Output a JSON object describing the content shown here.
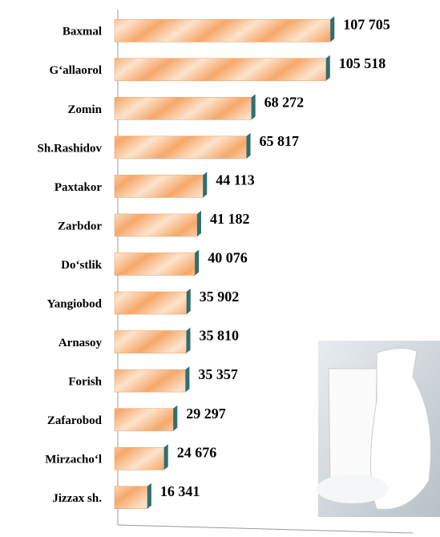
{
  "chart_data": {
    "type": "bar",
    "orientation": "horizontal",
    "categories": [
      "Baxmal",
      "G‘allaorol",
      "Zomin",
      "Sh.Rashidov",
      "Paxtakor",
      "Zarbdor",
      "Do‘stlik",
      "Yangiobod",
      "Arnasoy",
      "Forish",
      "Zafarobod",
      "Mirzacho‘l",
      "Jizzax sh."
    ],
    "values": [
      107705,
      105518,
      68272,
      65817,
      44113,
      41182,
      40076,
      35902,
      35810,
      35357,
      29297,
      24676,
      16341
    ],
    "value_labels": [
      "107 705",
      "105 518",
      "68 272",
      "65 817",
      "44 113",
      "41 182",
      "40 076",
      "35 902",
      "35 810",
      "35 357",
      "29 297",
      "24 676",
      "16 341"
    ],
    "color": "#f5b27a",
    "xlim": [
      0,
      120000
    ]
  }
}
